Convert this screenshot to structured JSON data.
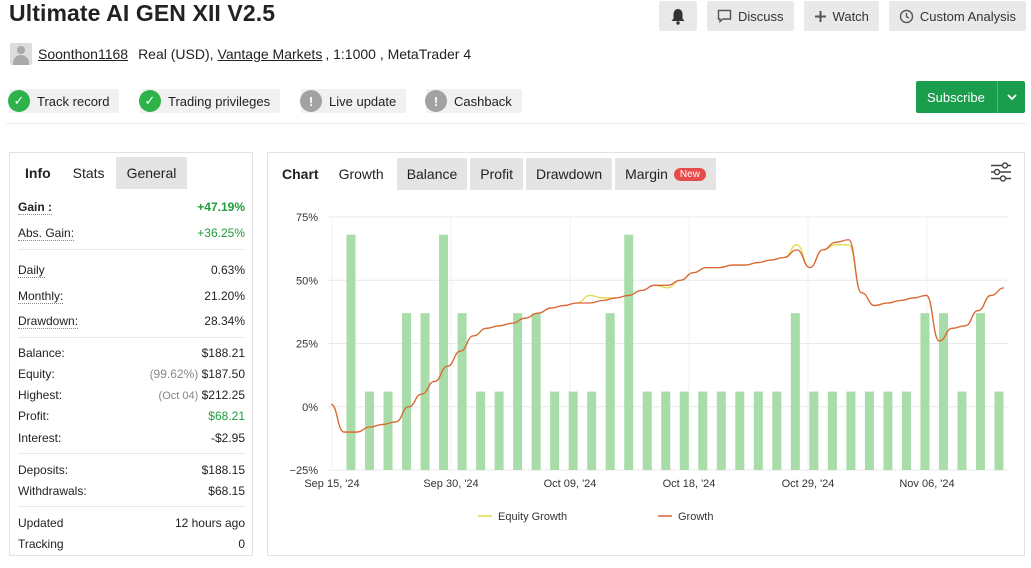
{
  "header": {
    "title": "Ultimate AI GEN XII V2.5",
    "actions": [
      {
        "label": "",
        "icon": "bell-icon"
      },
      {
        "label": "Discuss",
        "icon": "comment-icon"
      },
      {
        "label": "Watch",
        "icon": "plus-icon"
      },
      {
        "label": "Custom Analysis",
        "icon": "clock-icon"
      }
    ]
  },
  "account": {
    "username": "Soonthon1168",
    "type": "Real (USD),",
    "broker": "Vantage Markets",
    "leverage": ", 1:1000 , MetaTrader 4"
  },
  "badges": [
    {
      "label": "Track record",
      "status": "ok"
    },
    {
      "label": "Trading privileges",
      "status": "ok"
    },
    {
      "label": "Live update",
      "status": "warning"
    },
    {
      "label": "Cashback",
      "status": "warning"
    }
  ],
  "subscribe": {
    "label": "Subscribe"
  },
  "stats_tabs": {
    "heading": "Info",
    "tabs": [
      "Stats",
      "General"
    ]
  },
  "stats": {
    "gain": {
      "label": "Gain :",
      "value": "+47.19%"
    },
    "abs_gain": {
      "label": "Abs. Gain:",
      "value": "+36.25%"
    },
    "daily": {
      "label": "Daily",
      "value": "0.63%"
    },
    "monthly": {
      "label": "Monthly:",
      "value": "21.20%"
    },
    "drawdown": {
      "label": "Drawdown:",
      "value": "28.34%"
    },
    "balance": {
      "label": "Balance:",
      "value": "$188.21"
    },
    "equity": {
      "label": "Equity:",
      "note": "(99.62%)",
      "value": "$187.50"
    },
    "highest": {
      "label": "Highest:",
      "note": "(Oct 04)",
      "value": "$212.25"
    },
    "profit": {
      "label": "Profit:",
      "value": "$68.21"
    },
    "interest": {
      "label": "Interest:",
      "value": "-$2.95"
    },
    "deposits": {
      "label": "Deposits:",
      "value": "$188.15"
    },
    "withdrawals": {
      "label": "Withdrawals:",
      "value": "$68.15"
    },
    "updated": {
      "label": "Updated",
      "value": "12 hours ago"
    },
    "tracking": {
      "label": "Tracking",
      "value": "0"
    }
  },
  "chart_tabs": {
    "heading": "Chart",
    "tabs": [
      "Growth",
      "Balance",
      "Profit",
      "Drawdown",
      "Margin"
    ],
    "new_badge": "New"
  },
  "colors": {
    "bars": "#a8dca8",
    "growth": "#d9633a",
    "equity": "#e6d84a",
    "subscribe": "#1b9d4e",
    "positive": "#1c9d3c"
  },
  "chart_data": {
    "type": "line",
    "ylim": [
      -25,
      75
    ],
    "yticks": [
      "75%",
      "50%",
      "25%",
      "0%",
      "−25%"
    ],
    "xticks": [
      "Sep 15, '24",
      "Sep 30, '24",
      "Oct 09, '24",
      "Oct 18, '24",
      "Oct 29, '24",
      "Nov 06, '24"
    ],
    "legend": [
      "Equity Growth",
      "Growth"
    ],
    "legend_position": "bottom",
    "grid": true,
    "bars": [
      68,
      6,
      6,
      37,
      37,
      68,
      37,
      6,
      6,
      37,
      37,
      6,
      6,
      6,
      37,
      68,
      6,
      6,
      6,
      6,
      6,
      6,
      6,
      6,
      37,
      6,
      6,
      6,
      6,
      6,
      6,
      37,
      37,
      6,
      37,
      6
    ],
    "series": [
      {
        "name": "Growth",
        "values": [
          1,
          -10,
          -10,
          -8,
          -7,
          -6,
          0,
          5,
          10,
          16,
          22,
          28,
          31,
          32,
          33,
          35,
          37,
          39,
          40,
          41,
          41,
          42,
          43,
          44,
          46,
          48,
          48,
          50,
          53,
          55,
          55,
          56,
          56,
          57,
          58,
          59,
          62,
          55,
          62,
          65,
          66,
          45,
          40,
          41,
          42,
          43,
          44,
          26,
          31,
          32,
          38,
          44,
          47
        ]
      },
      {
        "name": "Equity Growth",
        "values": [
          1,
          -10,
          -10,
          -8,
          -7,
          -6,
          0,
          5,
          10,
          16,
          22,
          28,
          31,
          32,
          33,
          35,
          37,
          39,
          40,
          41,
          44,
          43,
          43,
          44,
          46,
          48,
          47,
          50,
          53,
          55,
          55,
          56,
          56,
          57,
          58,
          59,
          64,
          55,
          62,
          64,
          64,
          45,
          40,
          41,
          42,
          43,
          44,
          26,
          31,
          32,
          38,
          44,
          47
        ]
      }
    ]
  }
}
